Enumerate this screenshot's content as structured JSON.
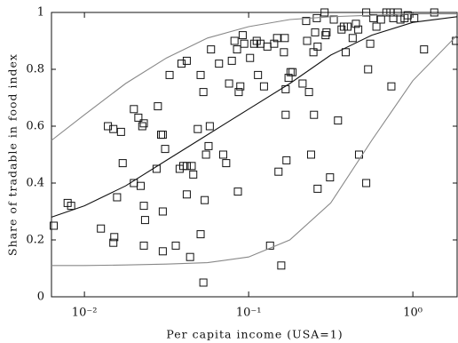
{
  "chart_data": {
    "type": "scatter",
    "xlabel": "Per capita income (USA=1)",
    "ylabel": "Share of tradable in food index",
    "xscale": "log",
    "xlim": [
      0.0063,
      1.86
    ],
    "ylim": [
      0,
      1
    ],
    "xticks": [
      {
        "value": 0.01,
        "label": "10⁻²"
      },
      {
        "value": 0.1,
        "label": "10⁻¹"
      },
      {
        "value": 1,
        "label": "10⁰"
      }
    ],
    "yticks": [
      0,
      0.2,
      0.4,
      0.6,
      0.8,
      1
    ],
    "series": [
      {
        "type": "scatter",
        "color": "#111111",
        "x": [
          0.0065,
          0.0079,
          0.0083,
          0.0126,
          0.0139,
          0.015,
          0.015,
          0.0152,
          0.0158,
          0.0167,
          0.0171,
          0.02,
          0.02,
          0.0213,
          0.022,
          0.0225,
          0.023,
          0.023,
          0.0234,
          0.023,
          0.0275,
          0.028,
          0.0293,
          0.03,
          0.03,
          0.03,
          0.031,
          0.033,
          0.036,
          0.038,
          0.039,
          0.04,
          0.042,
          0.042,
          0.042,
          0.044,
          0.045,
          0.046,
          0.049,
          0.051,
          0.051,
          0.053,
          0.054,
          0.053,
          0.055,
          0.057,
          0.058,
          0.059,
          0.066,
          0.07,
          0.073,
          0.076,
          0.079,
          0.082,
          0.085,
          0.086,
          0.087,
          0.089,
          0.092,
          0.094,
          0.102,
          0.108,
          0.112,
          0.114,
          0.118,
          0.124,
          0.13,
          0.135,
          0.143,
          0.149,
          0.152,
          0.158,
          0.164,
          0.166,
          0.168,
          0.168,
          0.17,
          0.175,
          0.18,
          0.185,
          0.213,
          0.224,
          0.227,
          0.233,
          0.24,
          0.248,
          0.25,
          0.254,
          0.26,
          0.263,
          0.263,
          0.29,
          0.294,
          0.298,
          0.313,
          0.33,
          0.35,
          0.368,
          0.38,
          0.39,
          0.4,
          0.43,
          0.45,
          0.47,
          0.465,
          0.52,
          0.52,
          0.534,
          0.55,
          0.575,
          0.6,
          0.64,
          0.69,
          0.73,
          0.74,
          0.76,
          0.81,
          0.84,
          0.89,
          0.93,
          1.02,
          1.17,
          1.35,
          1.83
        ],
        "values": [
          0.25,
          0.33,
          0.32,
          0.24,
          0.6,
          0.59,
          0.19,
          0.21,
          0.35,
          0.58,
          0.47,
          0.66,
          0.4,
          0.63,
          0.39,
          0.6,
          0.61,
          0.32,
          0.27,
          0.18,
          0.45,
          0.67,
          0.57,
          0.3,
          0.57,
          0.16,
          0.52,
          0.78,
          0.18,
          0.45,
          0.82,
          0.46,
          0.46,
          0.83,
          0.36,
          0.14,
          0.46,
          0.43,
          0.59,
          0.78,
          0.22,
          0.72,
          0.34,
          0.05,
          0.5,
          0.53,
          0.6,
          0.87,
          0.82,
          0.5,
          0.47,
          0.75,
          0.83,
          0.9,
          0.87,
          0.37,
          0.72,
          0.74,
          0.92,
          0.89,
          0.84,
          0.89,
          0.9,
          0.78,
          0.89,
          0.74,
          0.88,
          0.18,
          0.89,
          0.91,
          0.44,
          0.11,
          0.86,
          0.91,
          0.64,
          0.73,
          0.48,
          0.77,
          0.79,
          0.79,
          0.75,
          0.97,
          0.9,
          0.72,
          0.5,
          0.86,
          0.64,
          0.93,
          0.98,
          0.88,
          0.38,
          1.0,
          0.92,
          0.93,
          0.42,
          0.975,
          0.62,
          0.94,
          0.95,
          0.86,
          0.95,
          0.91,
          0.96,
          0.5,
          0.94,
          1.0,
          0.4,
          0.8,
          0.89,
          0.98,
          0.95,
          0.975,
          1.0,
          1.0,
          0.74,
          0.98,
          1.0,
          0.975,
          0.98,
          0.99,
          0.98,
          0.87,
          1.0,
          0.9
        ]
      },
      {
        "type": "line",
        "color": "#888888",
        "x": [
          0.0063,
          0.01,
          0.0178,
          0.0316,
          0.0562,
          0.1,
          0.178,
          0.316,
          0.562,
          1,
          1.86
        ],
        "values": [
          0.55,
          0.64,
          0.75,
          0.84,
          0.91,
          0.95,
          0.975,
          0.985,
          0.99,
          0.995,
          0.995
        ]
      },
      {
        "type": "line",
        "color": "#111111",
        "x": [
          0.0063,
          0.01,
          0.0178,
          0.0316,
          0.0562,
          0.1,
          0.178,
          0.316,
          0.562,
          1,
          1.86
        ],
        "values": [
          0.28,
          0.32,
          0.39,
          0.48,
          0.57,
          0.66,
          0.75,
          0.85,
          0.92,
          0.965,
          0.985
        ]
      },
      {
        "type": "line",
        "color": "#888888",
        "x": [
          0.0063,
          0.01,
          0.0178,
          0.0316,
          0.0562,
          0.1,
          0.178,
          0.316,
          0.562,
          1,
          1.86
        ],
        "values": [
          0.11,
          0.11,
          0.112,
          0.115,
          0.12,
          0.14,
          0.2,
          0.33,
          0.55,
          0.76,
          0.92
        ]
      }
    ]
  }
}
